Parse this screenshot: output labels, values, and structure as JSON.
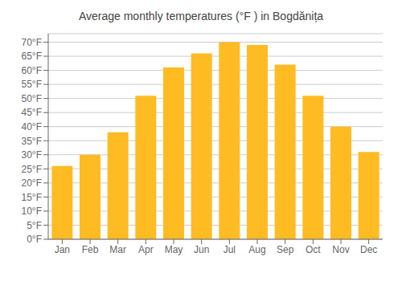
{
  "chart_data": {
    "type": "bar",
    "title": "Average monthly temperatures (°F ) in Bogdănița",
    "categories": [
      "Jan",
      "Feb",
      "Mar",
      "Apr",
      "May",
      "Jun",
      "Jul",
      "Aug",
      "Sep",
      "Oct",
      "Nov",
      "Dec"
    ],
    "values": [
      26,
      30,
      38,
      51,
      61,
      66,
      70,
      69,
      62,
      51,
      40,
      31
    ],
    "color": "#FFBB22",
    "ylim": [
      0,
      73
    ],
    "yticks": [
      {
        "value": 0,
        "label": "0°F"
      },
      {
        "value": 5,
        "label": "5°F"
      },
      {
        "value": 10,
        "label": "10°F"
      },
      {
        "value": 15,
        "label": "15°F"
      },
      {
        "value": 20,
        "label": "20°F"
      },
      {
        "value": 25,
        "label": "25°F"
      },
      {
        "value": 30,
        "label": "30°F"
      },
      {
        "value": 35,
        "label": "35°F"
      },
      {
        "value": 40,
        "label": "40°F"
      },
      {
        "value": 45,
        "label": "45°F"
      },
      {
        "value": 50,
        "label": "50°F"
      },
      {
        "value": 55,
        "label": "55°F"
      },
      {
        "value": 60,
        "label": "60°F"
      },
      {
        "value": 65,
        "label": "65°F"
      },
      {
        "value": 70,
        "label": "70°F"
      }
    ],
    "grid": true
  }
}
